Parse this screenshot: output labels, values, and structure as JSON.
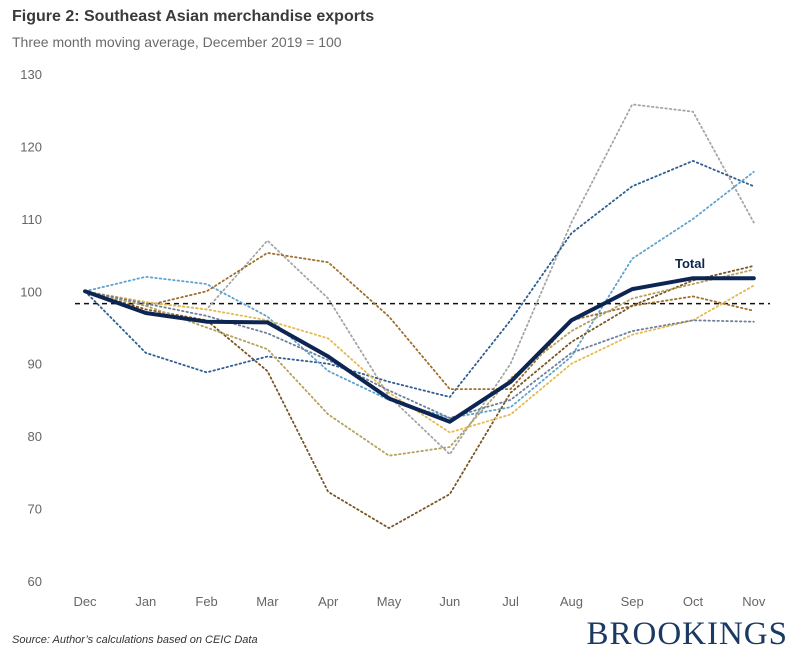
{
  "header": {
    "title": "Figure 2: Southeast Asian merchandise exports",
    "subtitle": "Three month moving average, December 2019 = 100"
  },
  "footer": {
    "source": "Source: Author’s calculations based on CEIC Data",
    "brand": "BROOKINGS"
  },
  "chart_data": {
    "type": "line",
    "title": "Figure 2: Southeast Asian merchandise exports",
    "subtitle": "Three month moving average, December 2019 = 100",
    "xlabel": "",
    "ylabel": "",
    "categories": [
      "Dec",
      "Jan",
      "Feb",
      "Mar",
      "Apr",
      "May",
      "Jun",
      "Jul",
      "Aug",
      "Sep",
      "Oct",
      "Nov"
    ],
    "ylim": [
      60,
      130
    ],
    "yticks": [
      60,
      70,
      80,
      90,
      100,
      110,
      120,
      130
    ],
    "reference_line": 98.3,
    "grid": false,
    "legend": "none",
    "series": [
      {
        "name": "Total",
        "color": "#0d2553",
        "style": "solid",
        "values": [
          100,
          97,
          95.8,
          95.7,
          91,
          85.2,
          82,
          87.5,
          96,
          100.3,
          101.8,
          101.8
        ]
      },
      {
        "color": "#a5a5a5",
        "style": "dotted",
        "values": [
          100,
          98.5,
          97.5,
          107,
          99,
          85.5,
          77.5,
          90,
          109.5,
          125.8,
          124.8,
          109.5
        ]
      },
      {
        "color": "#2e5e92",
        "style": "dotted",
        "values": [
          100,
          91.5,
          88.8,
          91,
          90,
          87.5,
          85.4,
          96,
          108,
          114.5,
          118,
          114.5
        ]
      },
      {
        "color": "#5ea3cf",
        "style": "dotted",
        "values": [
          100,
          102,
          101,
          96.5,
          89,
          85,
          82.5,
          84,
          91,
          104.5,
          110,
          116.5
        ]
      },
      {
        "color": "#9e6f2c",
        "style": "dotted",
        "values": [
          100,
          98,
          100,
          105.3,
          104,
          96.5,
          86.5,
          86.5,
          96,
          98,
          99.3,
          97.3
        ]
      },
      {
        "color": "#7a5522",
        "style": "dotted",
        "values": [
          100,
          97.5,
          96,
          89,
          72.3,
          67.3,
          72,
          86,
          93,
          98,
          101.5,
          103.5
        ]
      },
      {
        "color": "#b3a15d",
        "style": "dotted",
        "values": [
          100,
          98,
          95,
          92,
          83,
          77.3,
          78.5,
          88,
          94.5,
          99,
          101,
          103
        ]
      },
      {
        "color": "#e6b94e",
        "style": "dotted",
        "values": [
          100,
          98.5,
          97.5,
          96,
          93.5,
          86,
          80.5,
          83,
          90,
          94,
          96,
          100.8
        ]
      },
      {
        "color": "#6e7f9a",
        "style": "dotted",
        "values": [
          100,
          98.3,
          96.6,
          94.2,
          90.5,
          86.3,
          82.5,
          85,
          91.5,
          94.5,
          96,
          95.8
        ]
      }
    ],
    "annotations": [
      {
        "text": "Total",
        "series": "Total",
        "at": "Oct"
      }
    ]
  }
}
